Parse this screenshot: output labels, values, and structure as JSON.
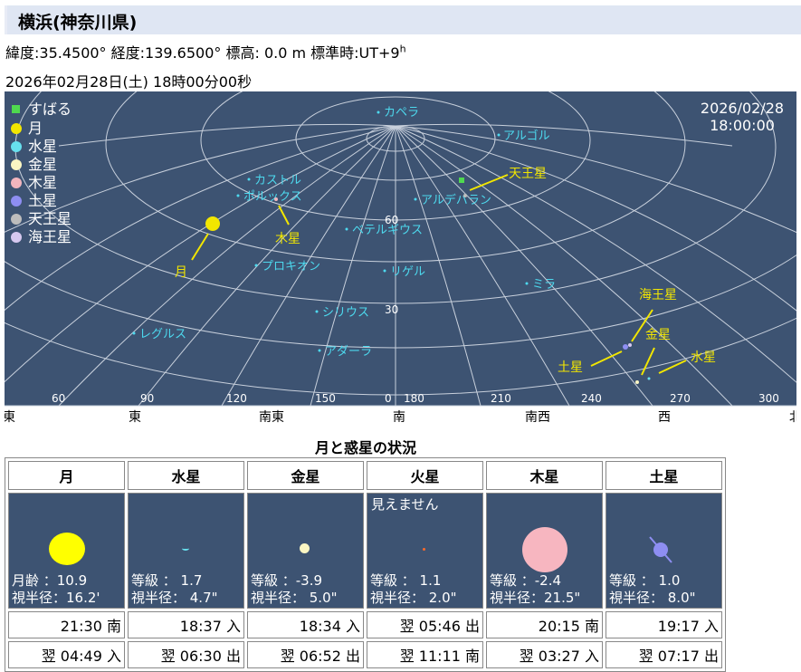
{
  "page": {
    "title": "横浜(神奈川県)",
    "location_line": "緯度:35.4500° 経度:139.6500° 標高: 0.0 m 標準時:UT+9",
    "location_sup": "h",
    "datetime_line": "2026年02月28日(土) 18時00分00秒"
  },
  "sky": {
    "date": "2026/02/28",
    "time": "18:00:00",
    "legend": [
      {
        "label": "すばる",
        "color": "#4fd94f",
        "shape": "square"
      },
      {
        "label": "月",
        "color": "#f2e600",
        "shape": "circle"
      },
      {
        "label": "水星",
        "color": "#67e0ee",
        "shape": "circle"
      },
      {
        "label": "金星",
        "color": "#fbf6c3",
        "shape": "circle"
      },
      {
        "label": "木星",
        "color": "#f2b5bd",
        "shape": "circle"
      },
      {
        "label": "土星",
        "color": "#8e8ef2",
        "shape": "circle"
      },
      {
        "label": "天王星",
        "color": "#bdbdbd",
        "shape": "circle"
      },
      {
        "label": "海王星",
        "color": "#d7c9f0",
        "shape": "circle"
      }
    ],
    "stars": [
      "カペラ",
      "アルゴル",
      "カストル",
      "ポルックス",
      "アルデバラン",
      "ベテルギウス",
      "プロキオン",
      "リゲル",
      "ミラ",
      "シリウス",
      "レグルス",
      "アダーラ"
    ],
    "planet_labels": [
      "天王星",
      "木星",
      "月",
      "海王星",
      "金星",
      "土星",
      "水星"
    ],
    "altitude_labels": [
      "60",
      "30",
      "0"
    ],
    "azimuth_labels": [
      "60",
      "90",
      "120",
      "150",
      "180",
      "210",
      "240",
      "270",
      "300"
    ],
    "directions": [
      "北東",
      "東",
      "南東",
      "南",
      "南西",
      "西",
      "北西"
    ],
    "colors": {
      "sky": "#3d5372",
      "grid": "#c8d0dc",
      "star_label": "#4dd9ee",
      "planet_label": "#f2e600"
    }
  },
  "table": {
    "title": "月と惑星の状況",
    "columns": [
      {
        "name": "月",
        "note": "",
        "line1": "月齢 ：10.9",
        "line2": "視半径：16.2'",
        "rise": "21:30 南",
        "set": "翌 04:49 入",
        "color": "#ffff00",
        "size": 38
      },
      {
        "name": "水星",
        "note": "",
        "line1": "等級 ： 1.7",
        "line2": "視半径： 4.7\"",
        "rise": "18:37 入",
        "set": "翌 06:30 出",
        "color": "#67e0ee",
        "size": 5
      },
      {
        "name": "金星",
        "note": "",
        "line1": "等級 ：-3.9",
        "line2": "視半径： 5.0\"",
        "rise": "18:34 入",
        "set": "翌 06:52 出",
        "color": "#fbf6c3",
        "size": 11
      },
      {
        "name": "火星",
        "note": "見えません",
        "line1": "等級 ： 1.1",
        "line2": "視半径： 2.0\"",
        "rise": "翌 05:46 出",
        "set": "翌 11:11 南",
        "color": "#ff6a2a",
        "size": 3
      },
      {
        "name": "木星",
        "note": "",
        "line1": "等級 ：-2.4",
        "line2": "視半径：21.5\"",
        "rise": "20:15 南",
        "set": "翌 03:27 入",
        "color": "#f7b6c0",
        "size": 50
      },
      {
        "name": "土星",
        "note": "",
        "line1": "等級 ： 1.0",
        "line2": "視半径： 8.0\"",
        "rise": "19:17 入",
        "set": "翌 07:17 出",
        "color": "#8e8ef2",
        "size": 16
      }
    ]
  }
}
